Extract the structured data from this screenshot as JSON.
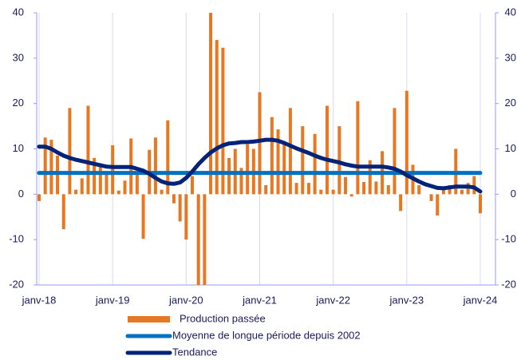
{
  "chart_data": {
    "type": "bar_line",
    "categories": [
      "janv-18",
      null,
      null,
      null,
      null,
      null,
      null,
      null,
      null,
      null,
      null,
      null,
      "janv-19",
      null,
      null,
      null,
      null,
      null,
      null,
      null,
      null,
      null,
      null,
      null,
      "janv-20",
      null,
      null,
      null,
      null,
      null,
      null,
      null,
      null,
      null,
      null,
      null,
      "janv-21",
      null,
      null,
      null,
      null,
      null,
      null,
      null,
      null,
      null,
      null,
      null,
      "janv-22",
      null,
      null,
      null,
      null,
      null,
      null,
      null,
      null,
      null,
      null,
      null,
      "janv-23",
      null,
      null,
      null,
      null,
      null,
      null,
      null,
      null,
      null,
      null,
      null,
      "janv-24"
    ],
    "series": [
      {
        "name": "Production passée",
        "type": "bar",
        "color": "#e87722",
        "values": [
          -1.5,
          12.5,
          12,
          8.5,
          -7.7,
          19,
          1,
          3.5,
          19.5,
          8,
          6,
          5,
          10.8,
          0.8,
          3,
          12.3,
          5,
          -9.8,
          9.8,
          12.5,
          1,
          16.3,
          -2,
          -6,
          -10,
          4,
          -20,
          -20,
          40,
          34,
          32.3,
          8,
          10,
          5.8,
          11,
          10,
          22.5,
          2,
          17,
          14.3,
          11,
          19,
          2.5,
          15,
          2.5,
          13.3,
          1,
          19.5,
          1,
          15,
          3.8,
          -0.5,
          20.5,
          2.7,
          7.5,
          2.8,
          9.5,
          2,
          19,
          -3.7,
          22.8,
          6.5,
          2,
          0,
          -1.5,
          -4.7,
          1.5,
          2,
          10,
          1,
          2.5,
          4,
          -4.2
        ]
      },
      {
        "name": "Moyenne de longue période depuis 2002",
        "type": "line",
        "color": "#0070c0",
        "values": [
          4.7,
          4.7,
          4.7,
          4.7,
          4.7,
          4.7,
          4.7,
          4.7,
          4.7,
          4.7,
          4.7,
          4.7,
          4.7,
          4.7,
          4.7,
          4.7,
          4.7,
          4.7,
          4.7,
          4.7,
          4.7,
          4.7,
          4.7,
          4.7,
          4.7,
          4.7,
          4.7,
          4.7,
          4.7,
          4.7,
          4.7,
          4.7,
          4.7,
          4.7,
          4.7,
          4.7,
          4.7,
          4.7,
          4.7,
          4.7,
          4.7,
          4.7,
          4.7,
          4.7,
          4.7,
          4.7,
          4.7,
          4.7,
          4.7,
          4.7,
          4.7,
          4.7,
          4.7,
          4.7,
          4.7,
          4.7,
          4.7,
          4.7,
          4.7,
          4.7,
          4.7,
          4.7,
          4.7,
          4.7,
          4.7,
          4.7,
          4.7,
          4.7,
          4.7,
          4.7,
          4.7,
          4.7,
          4.7
        ]
      },
      {
        "name": "Tendance",
        "type": "line",
        "color": "#00237a",
        "values": [
          10.5,
          10.5,
          10,
          9.2,
          8.5,
          8,
          7.6,
          7.3,
          7,
          6.7,
          6.4,
          6.1,
          6,
          6,
          6,
          6,
          5.6,
          5.2,
          4.5,
          3.6,
          2.8,
          2.4,
          2.3,
          2.6,
          3.6,
          5,
          6.6,
          8,
          9.2,
          10.1,
          10.8,
          11.2,
          11.3,
          11.5,
          11.5,
          11.6,
          11.8,
          12,
          12,
          11.8,
          11.3,
          10.7,
          10.1,
          9.6,
          9.1,
          8.5,
          8,
          7.6,
          7.3,
          7,
          6.6,
          6.3,
          6.1,
          6.1,
          6.1,
          6.1,
          6.1,
          5.9,
          5.6,
          5,
          4.2,
          3.5,
          2.8,
          2.2,
          1.8,
          1.4,
          1.3,
          1.5,
          1.7,
          1.7,
          1.7,
          1.5,
          0.6
        ]
      }
    ],
    "ylim": [
      -20,
      40
    ],
    "yticks": [
      -20,
      -10,
      0,
      10,
      20,
      30,
      40
    ],
    "y2lim": [
      -20,
      40
    ],
    "y2ticks": [
      -20,
      -10,
      0,
      10,
      20,
      30,
      40
    ],
    "grid": true,
    "legend": "bottom"
  }
}
